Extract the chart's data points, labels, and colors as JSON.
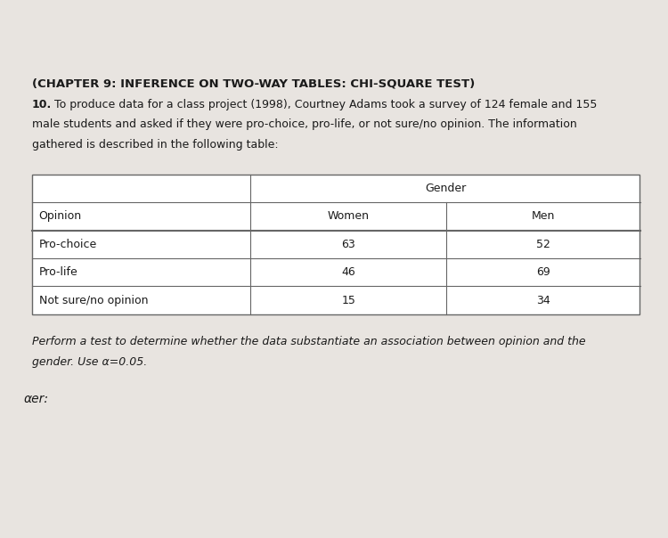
{
  "title": "(CHAPTER 9: INFERENCE ON TWO-WAY TABLES: CHI-SQUARE TEST)",
  "problem_number": "10.",
  "problem_lines": [
    " To produce data for a class project (1998), Courtney Adams took a survey of 124 female and 155",
    "male students and asked if they were pro-choice, pro-life, or not sure/no opinion. The information",
    "gathered is described in the following table:"
  ],
  "table_header_top": "Gender",
  "col_headers": [
    "Opinion",
    "Women",
    "Men"
  ],
  "rows": [
    [
      "Pro-choice",
      "63",
      "52"
    ],
    [
      "Pro-life",
      "46",
      "69"
    ],
    [
      "Not sure/no opinion",
      "15",
      "34"
    ]
  ],
  "footer_lines": [
    "Perform a test to determine whether the data substantiate an association between opinion and the",
    "gender. Use α=0.05."
  ],
  "answer_label": "αer:",
  "bg_color": "#e8e4e0",
  "text_color": "#1a1a1a",
  "title_fontsize": 9.5,
  "body_fontsize": 9.0,
  "table_fontsize": 9.0
}
